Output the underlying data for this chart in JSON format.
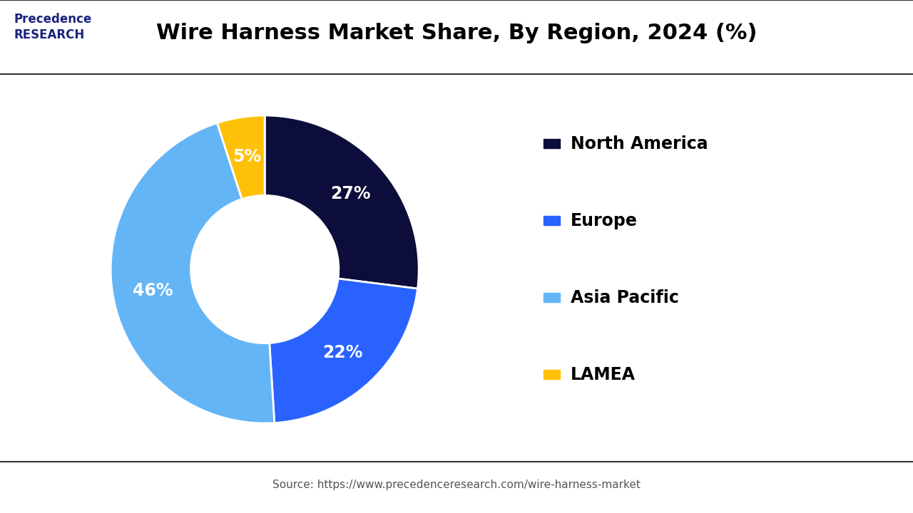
{
  "title": "Wire Harness Market Share, By Region, 2024 (%)",
  "labels": [
    "North America",
    "Europe",
    "Asia Pacific",
    "LAMEA"
  ],
  "values": [
    27,
    22,
    46,
    5
  ],
  "colors": [
    "#0d0d3b",
    "#2962ff",
    "#64b5f6",
    "#ffc107"
  ],
  "pct_labels": [
    "27%",
    "22%",
    "46%",
    "5%"
  ],
  "source_text": "Source: https://www.precedenceresearch.com/wire-harness-market",
  "background_color": "#ffffff",
  "title_color": "#000000",
  "title_fontsize": 22,
  "legend_fontsize": 17,
  "pct_fontsize": 17,
  "logo_color": "#1a237e",
  "border_color": "#333333",
  "source_color": "#555555",
  "source_fontsize": 11
}
